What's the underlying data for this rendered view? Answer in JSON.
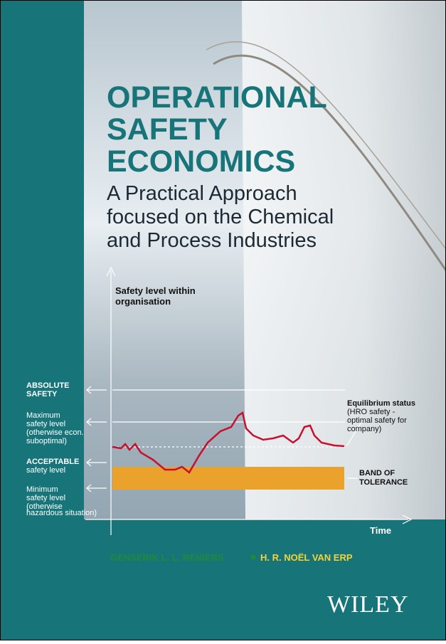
{
  "cover": {
    "title": [
      "OPERATIONAL",
      "SAFETY",
      "ECONOMICS"
    ],
    "subtitle": [
      "A Practical Approach",
      "focused on the Chemical",
      "and Process Industries"
    ],
    "diagram": {
      "y_axis_label": [
        "Safety level within",
        "organisation"
      ],
      "x_axis_label": "Time",
      "absolute": [
        "ABSOLUTE",
        "SAFETY"
      ],
      "maximum": [
        "Maximum",
        "safety level",
        "(otherwise econ.",
        "suboptimal)"
      ],
      "acceptable": [
        "ACCEPTABLE",
        "safety level"
      ],
      "minimum": [
        "Minimum",
        "safety level",
        "(otherwise",
        "hazardous situation)"
      ],
      "equilibrium": [
        "Equilibrium status",
        "(HRO safety -",
        "optimal safety for",
        "company)"
      ],
      "band": [
        "BAND OF",
        "TOLERANCE"
      ]
    },
    "authors": [
      "GENSERIK L. L. RENIERS",
      "H. R. NOËL VAN ERP"
    ],
    "publisher": "WILEY"
  }
}
